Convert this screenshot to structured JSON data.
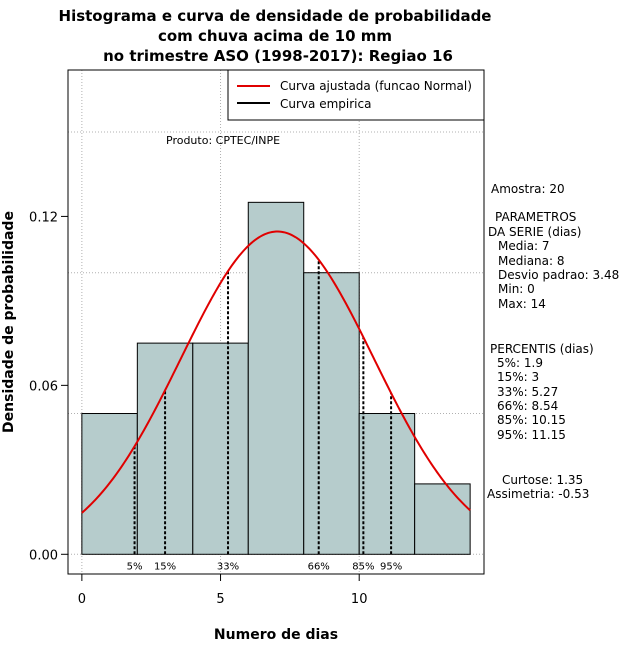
{
  "chart_data": {
    "type": "bar",
    "title_lines": [
      "Histograma e curva de densidade de probabilidade",
      "com chuva acima de 10 mm",
      "no trimestre ASO (1998-2017): Regiao 16"
    ],
    "xlabel": "Numero de dias",
    "ylabel": "Densidade de probabilidade",
    "xlim": [
      -0.5,
      14.5
    ],
    "ylim": [
      -0.007,
      0.172
    ],
    "xticks": [
      0,
      5,
      10
    ],
    "yticks": [
      0.0,
      0.06,
      0.12
    ],
    "ytick_labels": [
      "0.00",
      "0.06",
      "0.12"
    ],
    "grid": true,
    "bins": [
      {
        "x0": 0,
        "x1": 2,
        "density": 0.05
      },
      {
        "x0": 2,
        "x1": 4,
        "density": 0.075
      },
      {
        "x0": 4,
        "x1": 6,
        "density": 0.075
      },
      {
        "x0": 6,
        "x1": 8,
        "density": 0.125
      },
      {
        "x0": 8,
        "x1": 10,
        "density": 0.1
      },
      {
        "x0": 10,
        "x1": 12,
        "density": 0.05
      },
      {
        "x0": 12,
        "x1": 14,
        "density": 0.025
      }
    ],
    "normal_curve": {
      "mean": 7.05,
      "sd": 3.48,
      "x_from": 0,
      "x_to": 14
    },
    "percentile_lines": [
      {
        "label": "5%",
        "x": 1.9
      },
      {
        "label": "15%",
        "x": 3
      },
      {
        "label": "33%",
        "x": 5.27
      },
      {
        "label": "66%",
        "x": 8.54
      },
      {
        "label": "85%",
        "x": 10.15
      },
      {
        "label": "95%",
        "x": 11.15
      }
    ],
    "legend": {
      "position": "top-right",
      "entries": [
        {
          "label": "Curva ajustada (funcao Normal)",
          "color": "#e00000"
        },
        {
          "label": "Curva empirica",
          "color": "#000000"
        }
      ]
    },
    "annotation": "Produto: CPTEC/INPE",
    "side_panel": [
      "Amostra: 20",
      "PARAMETROS",
      "DA SERIE (dias)",
      "Media: 7",
      "Mediana: 8",
      "Desvio padrao: 3.48",
      "Min: 0",
      "Max: 14",
      "PERCENTIS (dias)",
      "5%: 1.9",
      "15%: 3",
      "33%: 5.27",
      "66%: 8.54",
      "85%: 10.15",
      "95%: 11.15",
      "Curtose: 1.35",
      "Assimetria: -0.53"
    ],
    "colors": {
      "bar_fill": "#b6cccc",
      "curve": "#e00000",
      "grid": "#b0b0b0"
    }
  }
}
